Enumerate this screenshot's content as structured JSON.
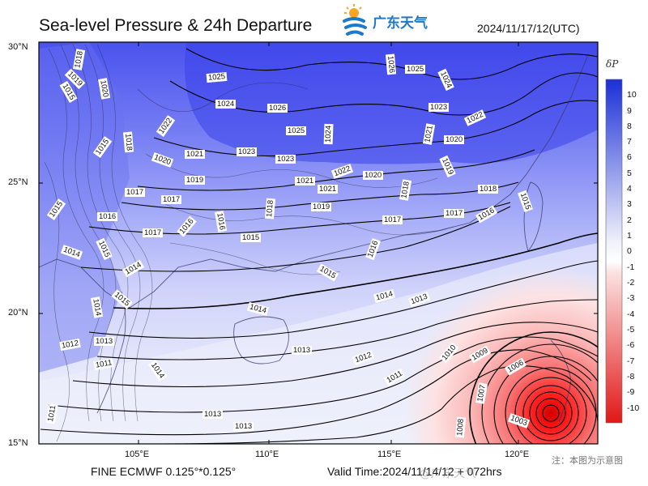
{
  "header": {
    "title": "Sea-level Pressure & 24h Departure",
    "datetime": "2024/11/17/12(UTC)",
    "logo_text": "广东天气"
  },
  "map": {
    "lat_labels": [
      "30°N",
      "25°N",
      "20°N",
      "15°N"
    ],
    "lon_labels": [
      "105°E",
      "110°E",
      "115°E",
      "120°E"
    ],
    "isobar_labels": [
      "1018",
      "1015",
      "1020",
      "1019",
      "1015",
      "1025",
      "1024",
      "1026",
      "1025",
      "1024",
      "1026",
      "1025",
      "1024",
      "1023",
      "1022",
      "1022",
      "1018",
      "1020",
      "1021",
      "1023",
      "1023",
      "1021",
      "1022",
      "1020",
      "1021",
      "1020",
      "1019",
      "1017",
      "1017",
      "1019",
      "1021",
      "1018",
      "1015",
      "1018",
      "1015",
      "1016",
      "1017",
      "1016",
      "1016",
      "1018",
      "1015",
      "1019",
      "1017",
      "1017",
      "1016",
      "1014",
      "1015",
      "1014",
      "1015",
      "1016",
      "1015",
      "1014",
      "1014",
      "1014",
      "1013",
      "1013",
      "1012",
      "1013",
      "1014",
      "1011",
      "1012",
      "1013",
      "1011",
      "1010",
      "1009",
      "1006",
      "1007",
      "1008",
      "1003",
      "1013",
      "1012",
      "1011"
    ]
  },
  "colorbar": {
    "title": "δP",
    "labels": [
      "10",
      "9",
      "8",
      "7",
      "6",
      "5",
      "4",
      "3",
      "2",
      "1",
      "0",
      "-1",
      "-2",
      "-3",
      "-4",
      "-5",
      "-6",
      "-7",
      "-8",
      "-9",
      "-10"
    ],
    "positive_color": "#1b2fd6",
    "negative_color": "#e01818"
  },
  "footer": {
    "model": "FINE ECMWF 0.125°*0.125°",
    "valid": "Valid Time:2024/11/14/12 + 072hrs",
    "watermark": "@广东天气",
    "note": "注：本图为示意图"
  }
}
